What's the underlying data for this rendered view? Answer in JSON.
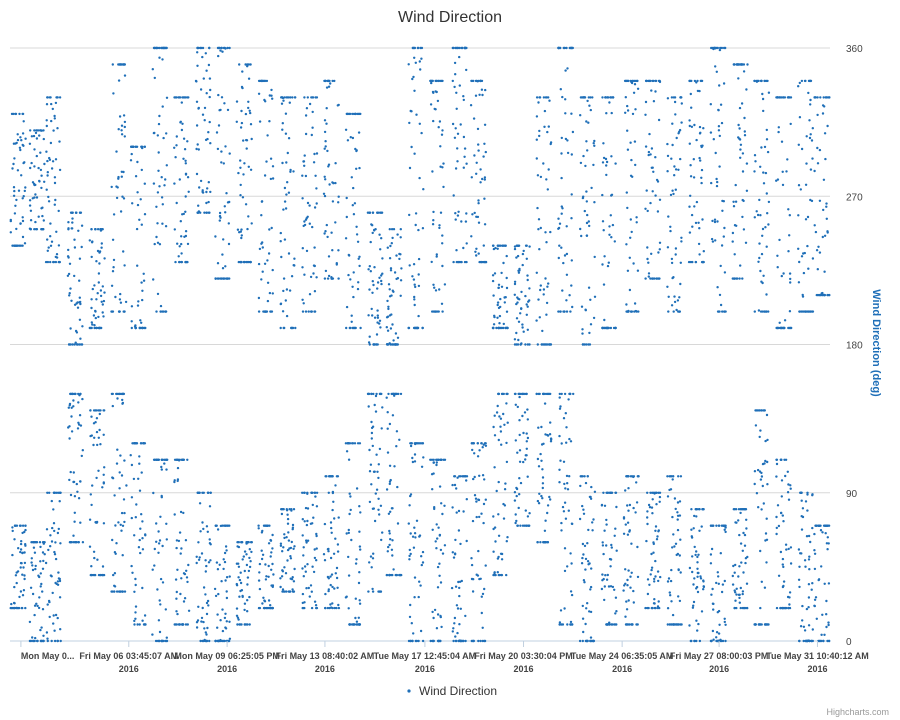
{
  "colors": {
    "series": "#1f6fb8",
    "grid": "#d8d8d8",
    "axis": "#c0d0e0"
  },
  "credits": "Highcharts.com",
  "chart_data": {
    "type": "scatter",
    "title": "Wind Direction",
    "ylabel": "Wind Direction (deg)",
    "ylim": [
      0,
      360
    ],
    "y_ticks": [
      0,
      90,
      180,
      270,
      360
    ],
    "y_axis_side": "right",
    "xlim_days": [
      1.8,
      31.9
    ],
    "legend": {
      "placement": "bottom-center",
      "label": "Wind Direction"
    },
    "x_ticks": [
      {
        "label": "Mon May 0...",
        "sub": "",
        "day": 2.2
      },
      {
        "label": "Fri May 06 03:45:07 AM",
        "sub": "2016",
        "day": 6.16
      },
      {
        "label": "Mon May 09 06:25:05 PM",
        "sub": "2016",
        "day": 9.77
      },
      {
        "label": "Fri May 13 08:40:02 AM",
        "sub": "2016",
        "day": 13.36
      },
      {
        "label": "Tue May 17 12:45:04 AM",
        "sub": "2016",
        "day": 17.03
      },
      {
        "label": "Fri May 20 03:30:04 PM",
        "sub": "2016",
        "day": 20.65
      },
      {
        "label": "Tue May 24 06:35:05 AM",
        "sub": "2016",
        "day": 24.27
      },
      {
        "label": "Fri May 27 08:00:03 PM",
        "sub": "2016",
        "day": 27.83
      },
      {
        "label": "Tue May 31 10:40:12 AM",
        "sub": "2016",
        "day": 31.44
      }
    ],
    "series": [
      {
        "name": "Wind Direction",
        "x_unit": "day of May 2016",
        "clusters": [
          {
            "day": 2.1,
            "upper": [
              240,
              320
            ],
            "lower": [
              20,
              70
            ]
          },
          {
            "day": 2.8,
            "upper": [
              250,
              310
            ],
            "lower": [
              0,
              60
            ]
          },
          {
            "day": 3.4,
            "upper": [
              230,
              330
            ],
            "lower": [
              0,
              90
            ]
          },
          {
            "day": 4.2,
            "upper": [
              180,
              260
            ],
            "lower": [
              60,
              150
            ]
          },
          {
            "day": 5.0,
            "upper": [
              190,
              250
            ],
            "lower": [
              40,
              140
            ]
          },
          {
            "day": 5.8,
            "upper": [
              200,
              350
            ],
            "lower": [
              30,
              150
            ]
          },
          {
            "day": 6.5,
            "upper": [
              190,
              300
            ],
            "lower": [
              10,
              120
            ]
          },
          {
            "day": 7.3,
            "upper": [
              200,
              360
            ],
            "lower": [
              0,
              110
            ]
          },
          {
            "day": 8.1,
            "upper": [
              230,
              330
            ],
            "lower": [
              10,
              110
            ]
          },
          {
            "day": 8.9,
            "upper": [
              260,
              360
            ],
            "lower": [
              0,
              90
            ]
          },
          {
            "day": 9.6,
            "upper": [
              220,
              360
            ],
            "lower": [
              0,
              70
            ]
          },
          {
            "day": 10.4,
            "upper": [
              230,
              350
            ],
            "lower": [
              10,
              60
            ]
          },
          {
            "day": 11.2,
            "upper": [
              200,
              340
            ],
            "lower": [
              20,
              70
            ]
          },
          {
            "day": 12.0,
            "upper": [
              190,
              330
            ],
            "lower": [
              30,
              80
            ]
          },
          {
            "day": 12.8,
            "upper": [
              200,
              330
            ],
            "lower": [
              20,
              90
            ]
          },
          {
            "day": 13.6,
            "upper": [
              220,
              340
            ],
            "lower": [
              20,
              100
            ]
          },
          {
            "day": 14.4,
            "upper": [
              190,
              320
            ],
            "lower": [
              10,
              120
            ]
          },
          {
            "day": 15.2,
            "upper": [
              180,
              260
            ],
            "lower": [
              30,
              150
            ]
          },
          {
            "day": 15.9,
            "upper": [
              180,
              250
            ],
            "lower": [
              40,
              150
            ]
          },
          {
            "day": 16.7,
            "upper": [
              190,
              360
            ],
            "lower": [
              0,
              120
            ]
          },
          {
            "day": 17.5,
            "upper": [
              200,
              340
            ],
            "lower": [
              0,
              110
            ]
          },
          {
            "day": 18.3,
            "upper": [
              230,
              360
            ],
            "lower": [
              0,
              100
            ]
          },
          {
            "day": 19.0,
            "upper": [
              230,
              340
            ],
            "lower": [
              0,
              120
            ]
          },
          {
            "day": 19.8,
            "upper": [
              190,
              240
            ],
            "lower": [
              40,
              150
            ]
          },
          {
            "day": 20.6,
            "upper": [
              180,
              240
            ],
            "lower": [
              70,
              150
            ]
          },
          {
            "day": 21.4,
            "upper": [
              180,
              330
            ],
            "lower": [
              60,
              150
            ]
          },
          {
            "day": 22.2,
            "upper": [
              200,
              360
            ],
            "lower": [
              10,
              150
            ]
          },
          {
            "day": 23.0,
            "upper": [
              180,
              330
            ],
            "lower": [
              0,
              100
            ]
          },
          {
            "day": 23.8,
            "upper": [
              190,
              330
            ],
            "lower": [
              10,
              90
            ]
          },
          {
            "day": 24.6,
            "upper": [
              200,
              340
            ],
            "lower": [
              10,
              100
            ]
          },
          {
            "day": 25.4,
            "upper": [
              220,
              340
            ],
            "lower": [
              20,
              90
            ]
          },
          {
            "day": 26.2,
            "upper": [
              200,
              330
            ],
            "lower": [
              10,
              100
            ]
          },
          {
            "day": 27.0,
            "upper": [
              230,
              340
            ],
            "lower": [
              0,
              80
            ]
          },
          {
            "day": 27.8,
            "upper": [
              200,
              360
            ],
            "lower": [
              0,
              70
            ]
          },
          {
            "day": 28.6,
            "upper": [
              220,
              350
            ],
            "lower": [
              20,
              80
            ]
          },
          {
            "day": 29.4,
            "upper": [
              200,
              340
            ],
            "lower": [
              10,
              140
            ]
          },
          {
            "day": 30.2,
            "upper": [
              190,
              330
            ],
            "lower": [
              20,
              110
            ]
          },
          {
            "day": 31.0,
            "upper": [
              200,
              340
            ],
            "lower": [
              0,
              90
            ]
          },
          {
            "day": 31.6,
            "upper": [
              210,
              330
            ],
            "lower": [
              0,
              70
            ]
          }
        ]
      }
    ]
  }
}
